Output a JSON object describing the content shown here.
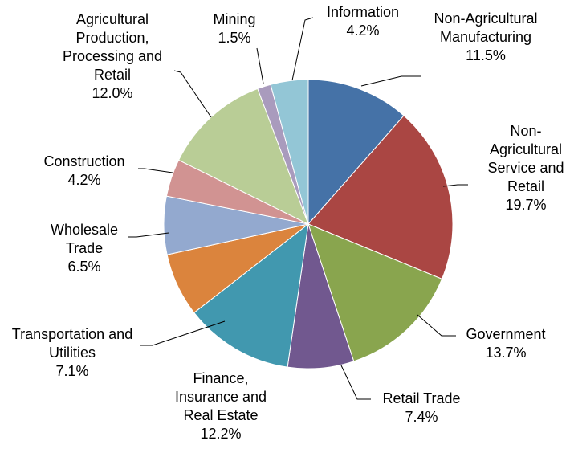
{
  "chart_data": {
    "type": "pie",
    "categories": [
      "Non-Agricultural Manufacturing",
      "Non-Agricultural Service and Retail",
      "Government",
      "Retail Trade",
      "Finance, Insurance and Real Estate",
      "Transportation and Utilities",
      "Wholesale Trade",
      "Construction",
      "Agricultural Production, Processing and Retail",
      "Mining",
      "Information"
    ],
    "values": [
      11.5,
      19.7,
      13.7,
      7.4,
      12.2,
      7.1,
      6.5,
      4.2,
      12.0,
      1.5,
      4.2
    ],
    "value_labels": [
      "11.5%",
      "19.7%",
      "13.7%",
      "7.4%",
      "12.2%",
      "7.1%",
      "6.5%",
      "4.2%",
      "12.0%",
      "1.5%",
      "4.2%"
    ],
    "colors": [
      "#4572a7",
      "#aa4643",
      "#89a54e",
      "#71588f",
      "#4198af",
      "#db843d",
      "#93a9cf",
      "#d19392",
      "#b9cd96",
      "#a99bbd",
      "#93c6d6"
    ]
  }
}
